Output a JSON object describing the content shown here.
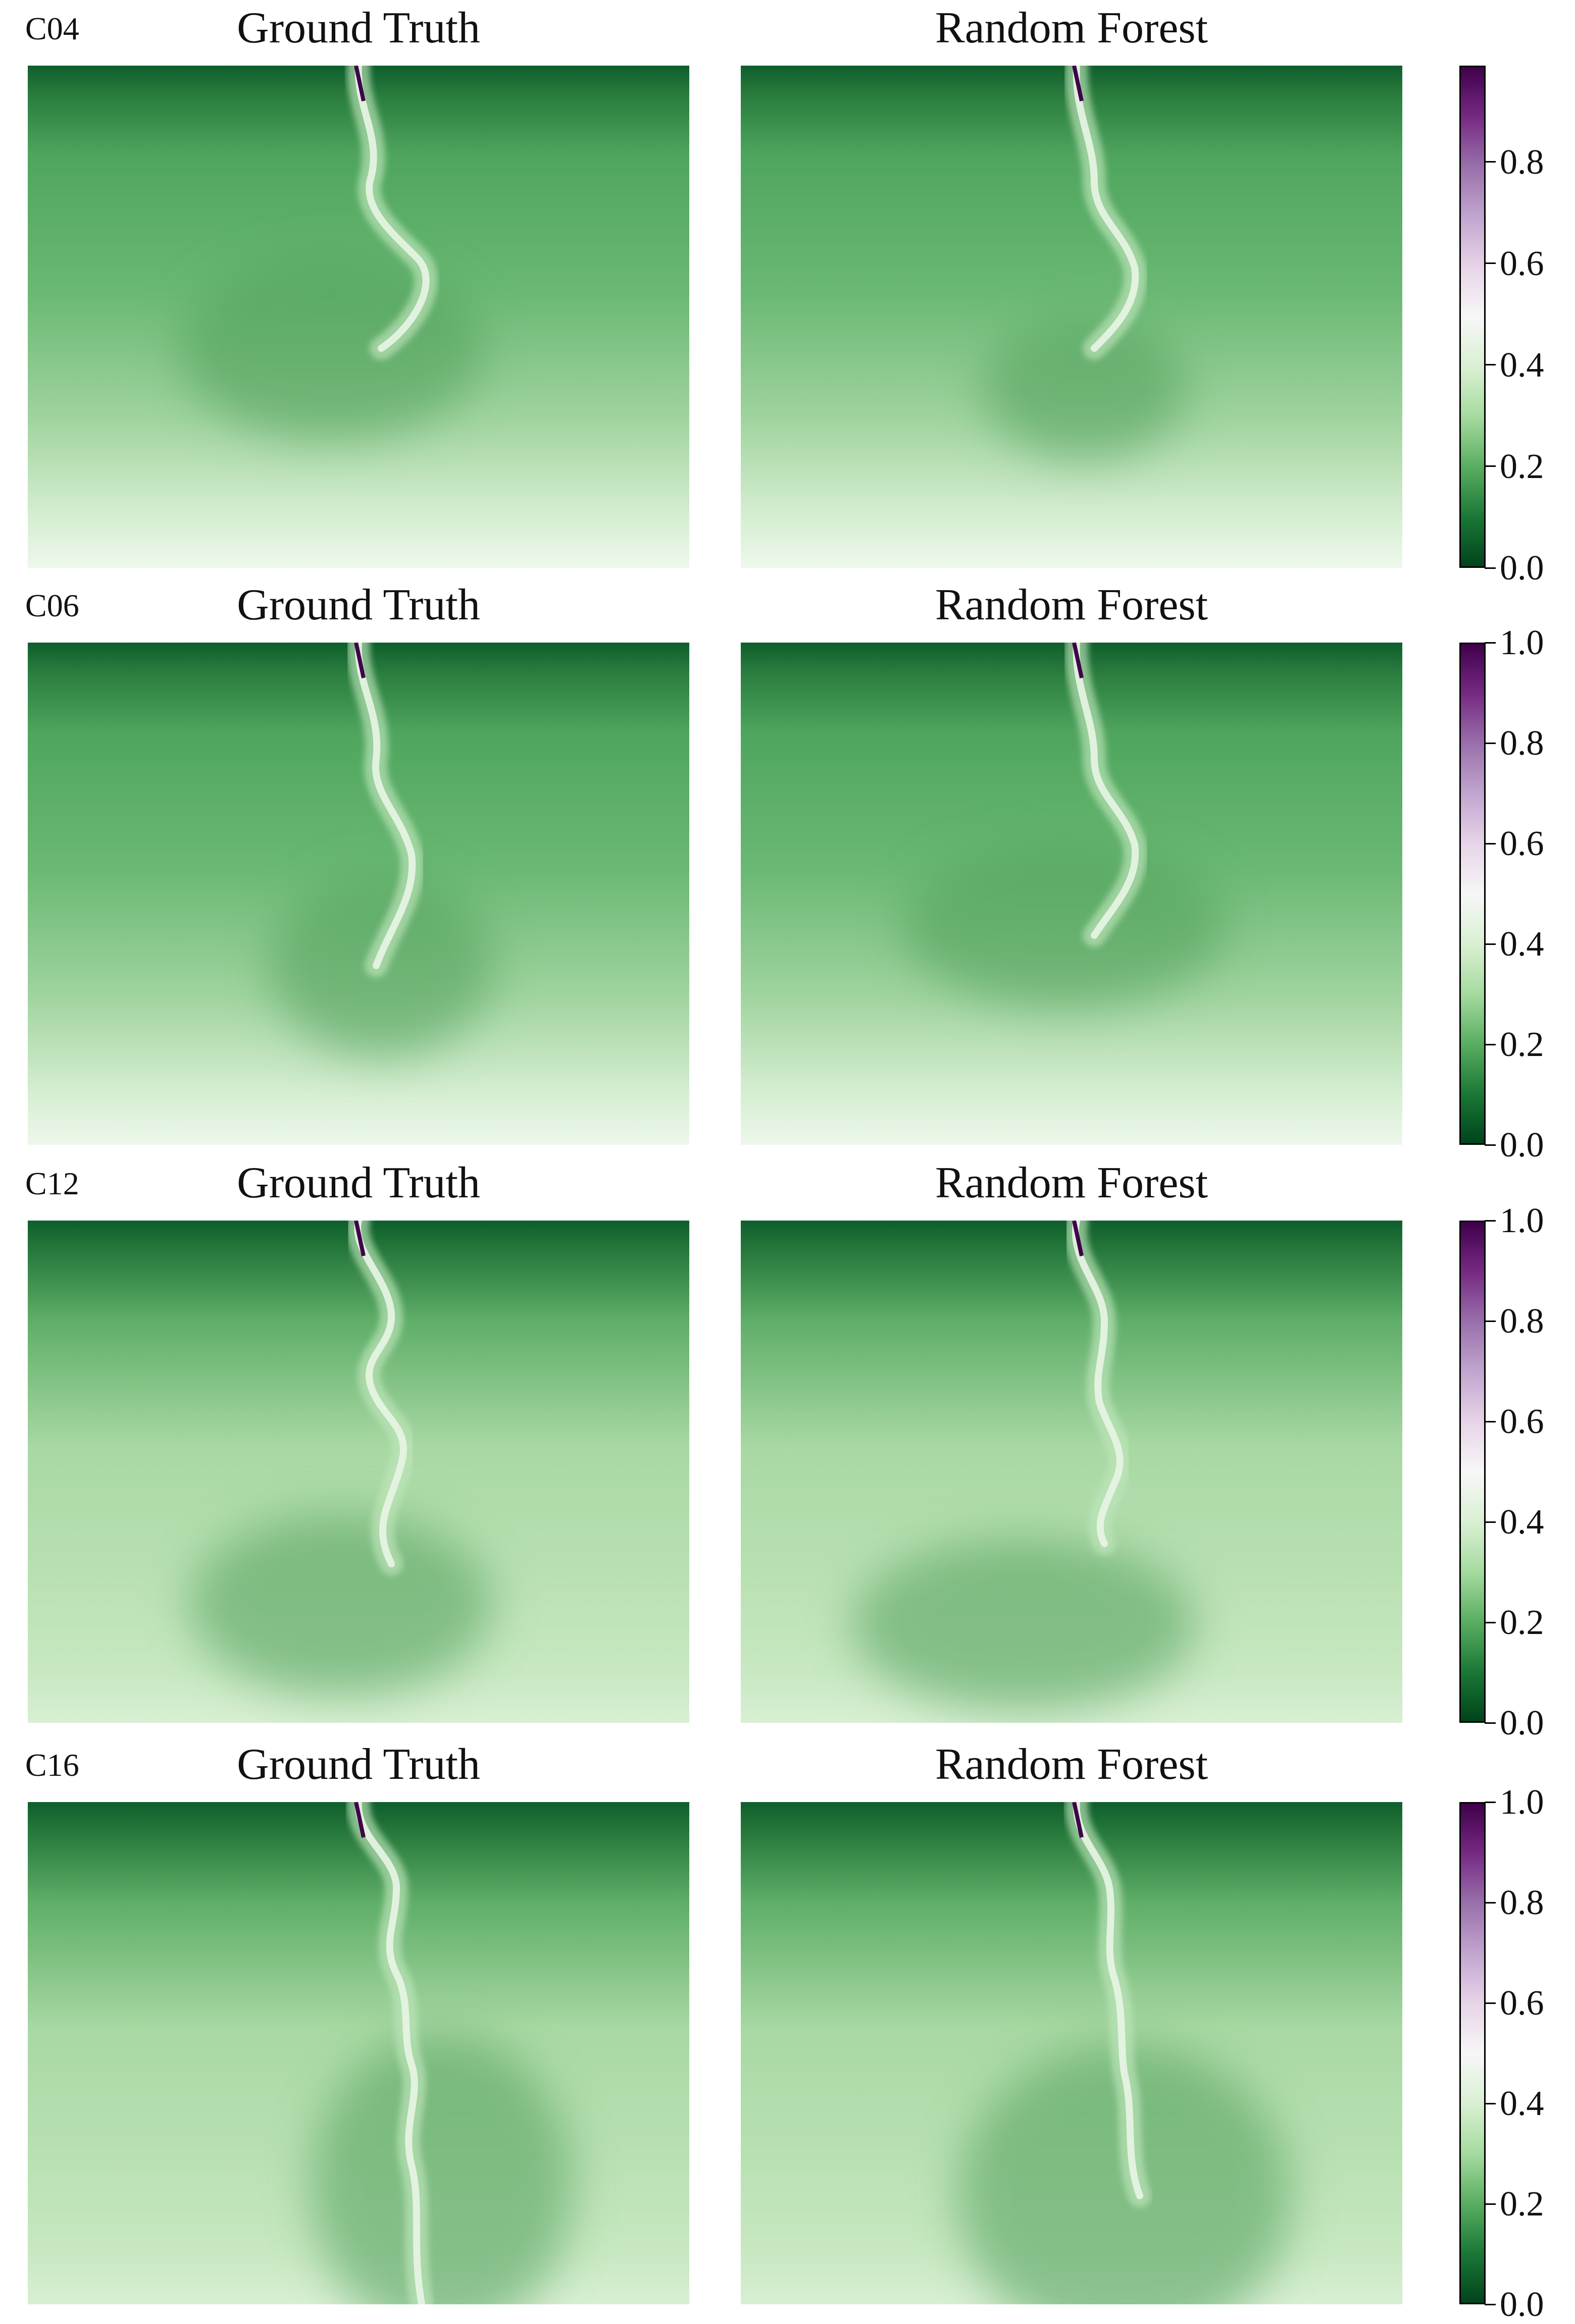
{
  "chart_data": [
    {
      "type": "heatmap",
      "case": "C04",
      "panels": [
        {
          "title": "Ground Truth"
        },
        {
          "title": "Random Forest"
        }
      ],
      "colormap": "PRGn_r",
      "colorbar": {
        "ticks": [
          0.0,
          0.2,
          0.4,
          0.6,
          0.8
        ],
        "tick_labels": [
          "0.0",
          "0.2",
          "0.4",
          "0.6",
          "0.8"
        ],
        "range": [
          0.0,
          0.99
        ]
      }
    },
    {
      "type": "heatmap",
      "case": "C06",
      "panels": [
        {
          "title": "Ground Truth"
        },
        {
          "title": "Random Forest"
        }
      ],
      "colormap": "PRGn_r",
      "colorbar": {
        "ticks": [
          0.0,
          0.2,
          0.4,
          0.6,
          0.8,
          1.0
        ],
        "tick_labels": [
          "0.0",
          "0.2",
          "0.4",
          "0.6",
          "0.8",
          "1.0"
        ],
        "range": [
          0.0,
          1.0
        ]
      }
    },
    {
      "type": "heatmap",
      "case": "C12",
      "panels": [
        {
          "title": "Ground Truth"
        },
        {
          "title": "Random Forest"
        }
      ],
      "colormap": "PRGn_r",
      "colorbar": {
        "ticks": [
          0.0,
          0.2,
          0.4,
          0.6,
          0.8,
          1.0
        ],
        "tick_labels": [
          "0.0",
          "0.2",
          "0.4",
          "0.6",
          "0.8",
          "1.0"
        ],
        "range": [
          0.0,
          1.0
        ]
      }
    },
    {
      "type": "heatmap",
      "case": "C16",
      "panels": [
        {
          "title": "Ground Truth"
        },
        {
          "title": "Random Forest"
        }
      ],
      "colormap": "PRGn_r",
      "colorbar": {
        "ticks": [
          0.0,
          0.2,
          0.4,
          0.6,
          0.8,
          1.0
        ],
        "tick_labels": [
          "0.0",
          "0.2",
          "0.4",
          "0.6",
          "0.8",
          "1.0"
        ],
        "range": [
          0.0,
          1.0
        ]
      }
    }
  ],
  "colors": {
    "dark_green": "#00441b",
    "mid_green": "#5aae61",
    "light_green": "#d9f0d3",
    "white": "#f7f7f7",
    "light_purple": "#e7d4e8",
    "mid_purple": "#9970ab",
    "dark_purple": "#40004b"
  }
}
